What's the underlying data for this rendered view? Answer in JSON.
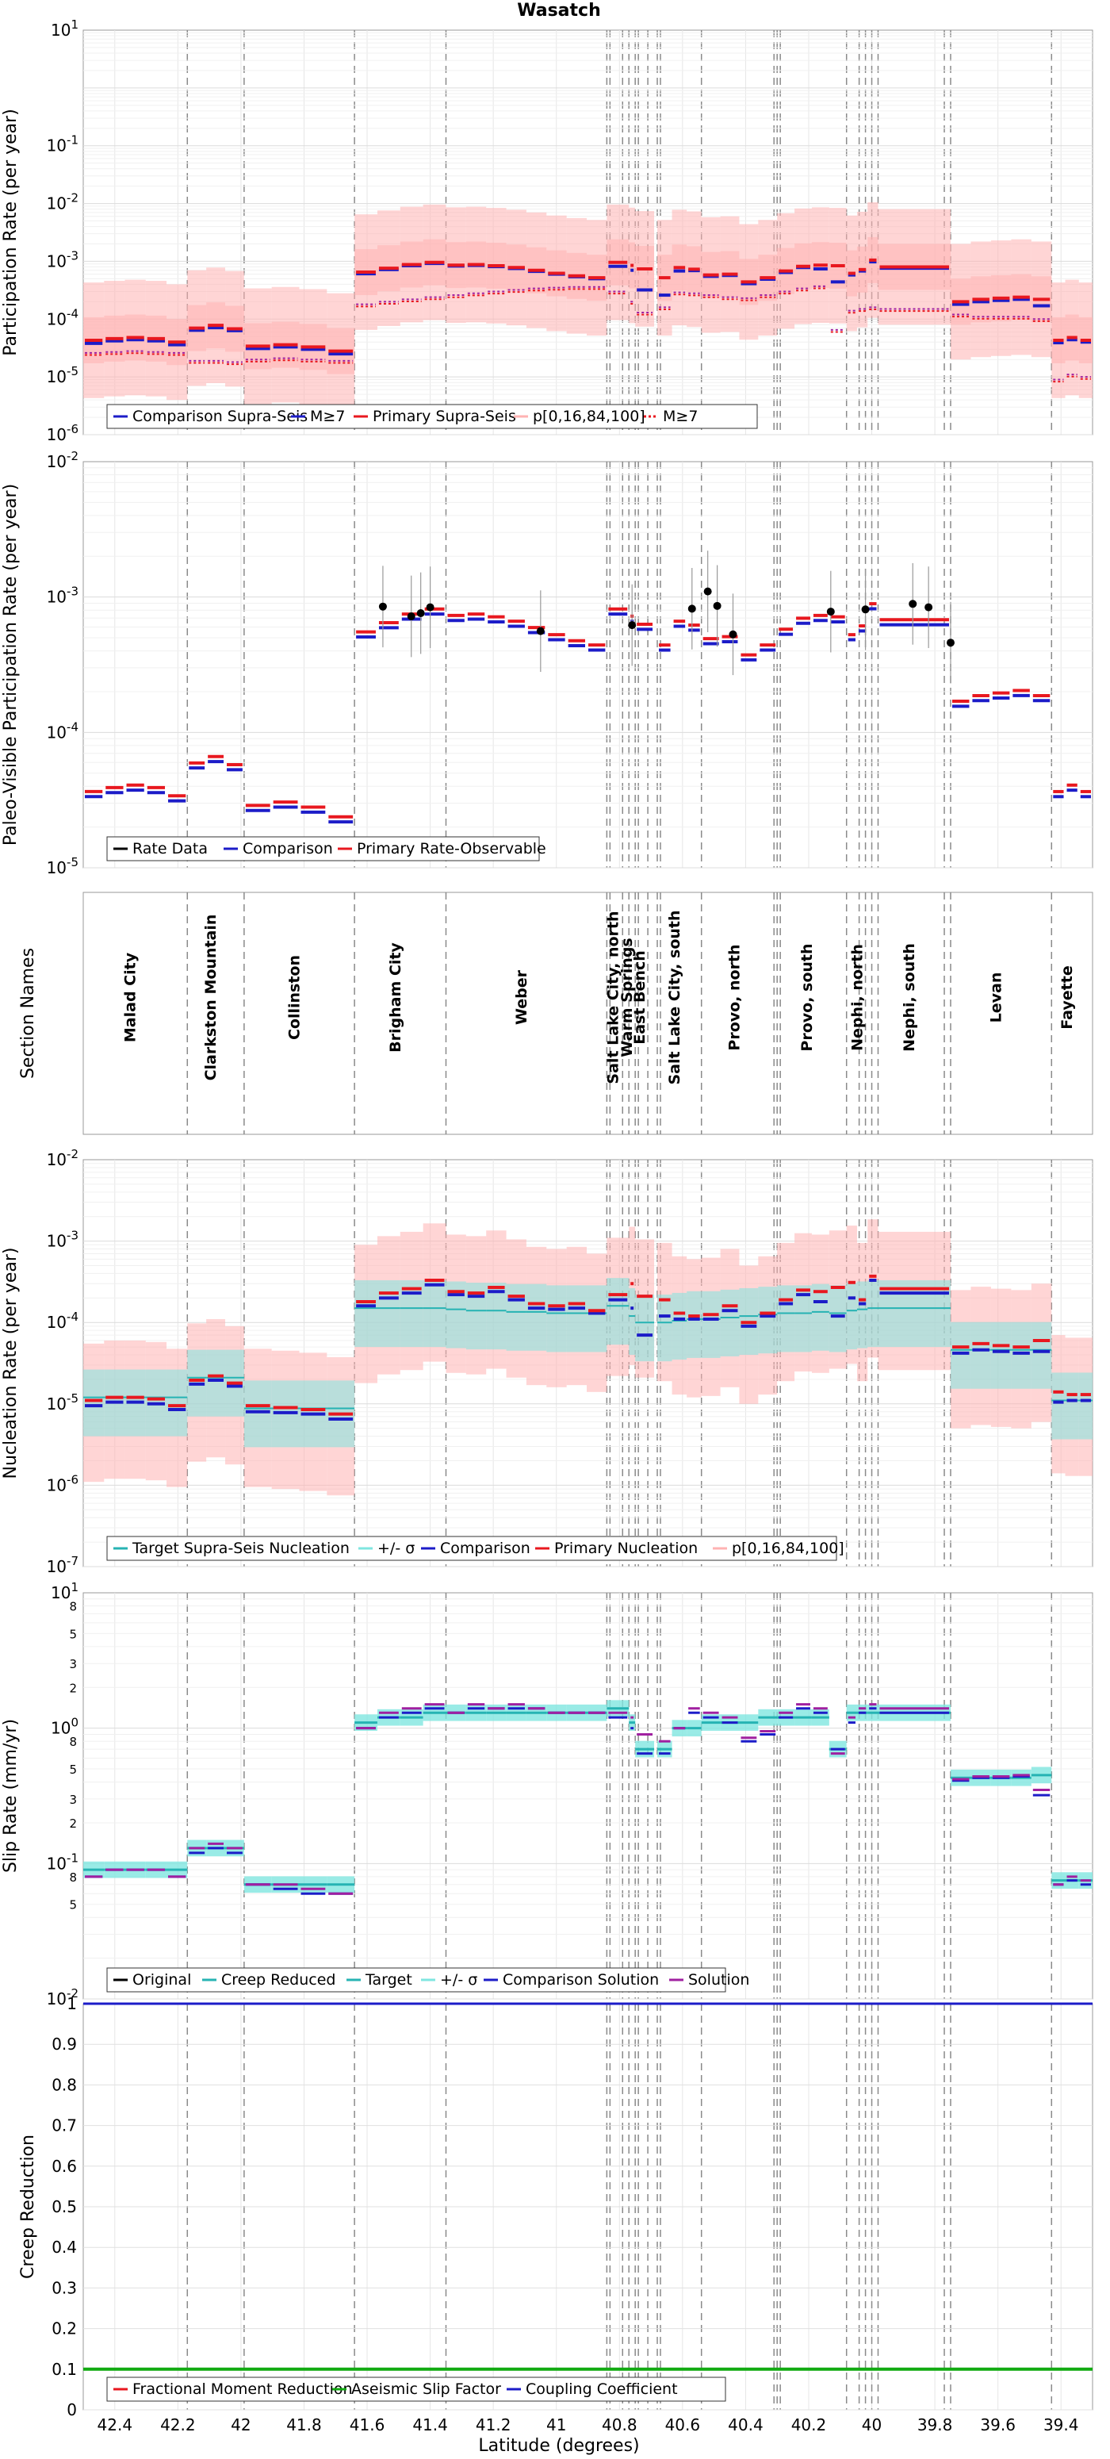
{
  "figure": {
    "title": "Wasatch",
    "xlabel": "Latitude (degrees)",
    "x_ticks": [
      "42.4",
      "42.2",
      "42",
      "41.8",
      "41.6",
      "41.4",
      "41.2",
      "41",
      "40.8",
      "40.6",
      "40.4",
      "40.2",
      "40",
      "39.8",
      "39.6",
      "39.4"
    ],
    "x_range": [
      42.5,
      39.3
    ]
  },
  "colors": {
    "primary": "#e8181f",
    "comparison": "#1c1cc8",
    "band": "#ffb3b3",
    "target": "#26b3b3",
    "sigma": "#7fe6e0",
    "solution": "#a020a0",
    "gray": "#8a8a8a",
    "green": "#11aa11"
  },
  "sections": [
    {
      "name": "Malad City",
      "start": 42.5,
      "end": 42.17
    },
    {
      "name": "Clarkston Mountain",
      "start": 42.17,
      "end": 41.99
    },
    {
      "name": "Collinston",
      "start": 41.99,
      "end": 41.64
    },
    {
      "name": "Brigham City",
      "start": 41.64,
      "end": 41.35
    },
    {
      "name": "Weber",
      "start": 41.35,
      "end": 40.84
    },
    {
      "name": "Salt Lake City, north",
      "start": 40.84,
      "end": 40.77
    },
    {
      "name": "Warm Springs",
      "start": 40.77,
      "end": 40.75
    },
    {
      "name": "East Bench",
      "start": 40.75,
      "end": 40.69
    },
    {
      "name": "Salt Lake City, south",
      "start": 40.68,
      "end": 40.54
    },
    {
      "name": "Provo, north",
      "start": 40.54,
      "end": 40.3
    },
    {
      "name": "Provo, south",
      "start": 40.3,
      "end": 40.08
    },
    {
      "name": "Nephi, north",
      "start": 40.08,
      "end": 39.98
    },
    {
      "name": "Nephi, south",
      "start": 39.98,
      "end": 39.75
    },
    {
      "name": "Levan",
      "start": 39.75,
      "end": 39.43
    },
    {
      "name": "Fayette",
      "start": 39.43,
      "end": 39.3
    }
  ],
  "chart_data": [
    {
      "type": "line",
      "title": "Wasatch",
      "ylabel": "Participation Rate (per year)",
      "yscale": "log",
      "ylim": [
        1e-06,
        10
      ],
      "y_ticks": [
        "10^-6",
        "10^-5",
        "10^-4",
        "10^-3",
        "10^-2",
        "10^-1"
      ],
      "legend": [
        "Comparison Supra-Seis",
        "M≥7",
        "Primary Supra-Seis",
        "p[0,16,84,100]",
        "M≥7"
      ],
      "series": [
        {
          "name": "Primary Supra-Seis",
          "values": [
            4.3e-05,
            4.6e-05,
            4.8e-05,
            4.6e-05,
            4e-05,
            7e-05,
            7.8e-05,
            6.8e-05,
            3.4e-05,
            3.6e-05,
            3.3e-05,
            2.8e-05,
            0.00065,
            0.00076,
            0.00088,
            0.00096,
            0.00086,
            0.00088,
            0.00084,
            0.00078,
            0.0007,
            0.00062,
            0.00056,
            0.00052,
            0.00096,
            0.00085,
            0.00074,
            0.00052,
            0.00078,
            0.00073,
            0.00058,
            0.0006,
            0.00044,
            0.00052,
            0.00068,
            0.00082,
            0.00086,
            0.00084,
            0.00062,
            0.00072,
            0.00105,
            0.0008,
            0.0002,
            0.00022,
            0.00023,
            0.00024,
            0.00022,
            4.3e-05,
            4.8e-05,
            4.3e-05
          ]
        },
        {
          "name": "Comparison Supra-Seis",
          "values": [
            3.8e-05,
            4.2e-05,
            4.4e-05,
            4.2e-05,
            3.6e-05,
            6.4e-05,
            7.1e-05,
            6.3e-05,
            3.1e-05,
            3.3e-05,
            3e-05,
            2.5e-05,
            0.00061,
            0.00072,
            0.00084,
            0.00092,
            0.00083,
            0.00085,
            0.00081,
            0.00075,
            0.00067,
            0.0006,
            0.00054,
            0.0005,
            0.00082,
            0.0007,
            0.00032,
            0.00026,
            0.00068,
            0.00069,
            0.00055,
            0.00057,
            0.00041,
            0.00049,
            0.00064,
            0.00078,
            0.00074,
            0.00044,
            0.00058,
            0.00068,
            0.00098,
            0.00076,
            0.00018,
            0.0002,
            0.00021,
            0.00022,
            0.00017,
            3.9e-05,
            4.4e-05,
            4e-05
          ]
        },
        {
          "name": "M≥7",
          "values": [
            2.6e-05,
            2.7e-05,
            2.8e-05,
            2.7e-05,
            2.6e-05,
            1.9e-05,
            1.9e-05,
            1.8e-05,
            2e-05,
            2.1e-05,
            2e-05,
            1.9e-05,
            0.00018,
            0.0002,
            0.00022,
            0.00024,
            0.00026,
            0.00028,
            0.0003,
            0.00032,
            0.00034,
            0.00035,
            0.00036,
            0.00036,
            0.0003,
            0.0002,
            0.00013,
            0.00016,
            0.00029,
            0.00028,
            0.00026,
            0.00024,
            0.00023,
            0.00026,
            0.0003,
            0.00034,
            0.00037,
            6.5e-05,
            0.00014,
            0.00015,
            0.00016,
            0.00015,
            0.00012,
            0.00011,
            0.00011,
            0.00011,
            0.0001,
            9e-06,
            1.1e-05,
            1e-05
          ]
        }
      ]
    },
    {
      "type": "line",
      "ylabel": "Paleo-Visible Participation Rate (per year)",
      "yscale": "log",
      "ylim": [
        1e-05,
        0.01
      ],
      "y_ticks": [
        "10^-5",
        "10^-4",
        "10^-3",
        "10^-2"
      ],
      "legend": [
        "Rate Data",
        "Comparison",
        "Primary Rate-Observable"
      ],
      "rate_data": [
        {
          "lat": 41.55,
          "value": 0.00085
        },
        {
          "lat": 41.46,
          "value": 0.00072
        },
        {
          "lat": 41.43,
          "value": 0.00076
        },
        {
          "lat": 41.4,
          "value": 0.00084
        },
        {
          "lat": 41.05,
          "value": 0.00056
        },
        {
          "lat": 40.76,
          "value": 0.00062
        },
        {
          "lat": 40.57,
          "value": 0.00082
        },
        {
          "lat": 40.52,
          "value": 0.0011
        },
        {
          "lat": 40.49,
          "value": 0.00086
        },
        {
          "lat": 40.44,
          "value": 0.00053
        },
        {
          "lat": 40.13,
          "value": 0.00078
        },
        {
          "lat": 40.02,
          "value": 0.00081
        },
        {
          "lat": 39.87,
          "value": 0.00089
        },
        {
          "lat": 39.82,
          "value": 0.00084
        },
        {
          "lat": 39.75,
          "value": 0.00046
        }
      ]
    },
    {
      "type": "table",
      "ylabel": "Section Names"
    },
    {
      "type": "line",
      "ylabel": "Nucleation Rate (per year)",
      "yscale": "log",
      "ylim": [
        1e-07,
        0.01
      ],
      "y_ticks": [
        "10^-7",
        "10^-6",
        "10^-5",
        "10^-4",
        "10^-3",
        "10^-2"
      ],
      "legend": [
        "Target Supra-Seis Nucleation",
        "+/- σ",
        "Comparison",
        "Primary Nucleation",
        "p[0,16,84,100]"
      ],
      "target": [
        1.2e-05,
        1.2e-05,
        1.2e-05,
        1.2e-05,
        1.2e-05,
        2.1e-05,
        2.1e-05,
        2.1e-05,
        8.8e-06,
        8.8e-06,
        8.8e-06,
        8.8e-06,
        0.00015,
        0.00015,
        0.00015,
        0.00015,
        0.000145,
        0.00014,
        0.00014,
        0.000135,
        0.000135,
        0.00013,
        0.00013,
        0.00013,
        0.00016,
        0.00012,
        0.0001,
        0.0001,
        0.000105,
        0.00011,
        0.00011,
        0.000115,
        0.00012,
        0.000125,
        0.00013,
        0.00013,
        0.000135,
        0.00013,
        0.00014,
        0.000145,
        0.00015,
        0.00015,
        4.6e-05,
        4.6e-05,
        4.6e-05,
        4.6e-05,
        4.6e-05,
        1.1e-05,
        1.1e-05,
        1.1e-05
      ],
      "primary": [
        1.1e-05,
        1.2e-05,
        1.2e-05,
        1.15e-05,
        9.5e-06,
        1.95e-05,
        2.2e-05,
        1.8e-05,
        9.5e-06,
        9e-06,
        8.5e-06,
        7.5e-06,
        0.00018,
        0.00023,
        0.00026,
        0.00033,
        0.00024,
        0.00023,
        0.00027,
        0.00021,
        0.00017,
        0.00016,
        0.00017,
        0.00014,
        0.00022,
        0.0003,
        0.00021,
        0.00019,
        0.00013,
        0.00012,
        0.000125,
        0.00016,
        0.0001,
        0.00013,
        0.00019,
        0.00025,
        0.00024,
        0.00027,
        0.00031,
        0.00019,
        0.00037,
        0.00026,
        5e-05,
        5.5e-05,
        5.2e-05,
        5e-05,
        6e-05,
        1.4e-05,
        1.3e-05,
        1.3e-05
      ],
      "comparison": [
        9.5e-06,
        1.05e-05,
        1.05e-05,
        1e-05,
        8.5e-06,
        1.75e-05,
        1.95e-05,
        1.65e-05,
        8e-06,
        7.8e-06,
        7.5e-06,
        6.5e-06,
        0.00016,
        0.0002,
        0.00023,
        0.00029,
        0.00022,
        0.00021,
        0.00024,
        0.00019,
        0.00015,
        0.000145,
        0.00015,
        0.00013,
        0.00019,
        0.00015,
        7e-05,
        0.00012,
        0.00011,
        0.00011,
        0.00011,
        0.00014,
        9e-05,
        0.00012,
        0.00017,
        0.00022,
        0.00018,
        0.00012,
        0.0002,
        0.00017,
        0.00033,
        0.00023,
        4.2e-05,
        4.6e-05,
        4.4e-05,
        4.2e-05,
        4.4e-05,
        1.05e-05,
        1.1e-05,
        1.1e-05
      ]
    },
    {
      "type": "line",
      "ylabel": "Slip Rate (mm/yr)",
      "yscale": "log",
      "ylim": [
        0.01,
        10
      ],
      "y_ticks": [
        "10^-2",
        "5",
        "8",
        "10^-1",
        "2",
        "3",
        "5",
        "8",
        "10^0",
        "2",
        "3",
        "5",
        "8",
        "10^1"
      ],
      "legend": [
        "Original",
        "Creep Reduced",
        "Target",
        "+/- σ",
        "Comparison Solution",
        "Solution"
      ],
      "target": [
        0.09,
        0.09,
        0.09,
        0.09,
        0.09,
        0.13,
        0.13,
        0.13,
        0.07,
        0.07,
        0.07,
        0.07,
        1.1,
        1.2,
        1.2,
        1.3,
        1.3,
        1.3,
        1.3,
        1.3,
        1.3,
        1.3,
        1.3,
        1.3,
        1.4,
        1.1,
        0.7,
        0.7,
        1.0,
        1.0,
        1.1,
        1.1,
        1.1,
        1.2,
        1.2,
        1.2,
        1.2,
        0.7,
        1.3,
        1.3,
        1.3,
        1.3,
        0.43,
        0.43,
        0.43,
        0.43,
        0.45,
        0.075,
        0.075,
        0.075
      ],
      "solution": [
        0.08,
        0.09,
        0.09,
        0.09,
        0.08,
        0.13,
        0.14,
        0.13,
        0.07,
        0.07,
        0.065,
        0.06,
        1.0,
        1.3,
        1.4,
        1.5,
        1.3,
        1.5,
        1.4,
        1.5,
        1.4,
        1.3,
        1.3,
        1.3,
        1.3,
        1.2,
        0.9,
        0.8,
        1.0,
        1.4,
        1.3,
        1.2,
        0.85,
        0.95,
        1.3,
        1.5,
        1.4,
        0.65,
        1.2,
        1.4,
        1.5,
        1.4,
        0.42,
        0.44,
        0.44,
        0.45,
        0.35,
        0.07,
        0.08,
        0.075
      ],
      "comparison": [
        0.08,
        0.09,
        0.09,
        0.09,
        0.08,
        0.12,
        0.13,
        0.12,
        0.07,
        0.065,
        0.06,
        0.06,
        1.0,
        1.2,
        1.3,
        1.4,
        1.3,
        1.4,
        1.4,
        1.4,
        1.4,
        1.3,
        1.3,
        1.3,
        1.2,
        1.0,
        0.65,
        0.65,
        1.0,
        1.3,
        1.2,
        1.1,
        0.8,
        0.9,
        1.2,
        1.4,
        1.3,
        0.7,
        1.1,
        1.3,
        1.4,
        1.3,
        0.41,
        0.43,
        0.43,
        0.44,
        0.32,
        0.07,
        0.075,
        0.07
      ]
    },
    {
      "type": "line",
      "ylabel": "Creep Reduction",
      "ylim": [
        0,
        1
      ],
      "y_ticks": [
        "0",
        "0.1",
        "0.2",
        "0.3",
        "0.4",
        "0.5",
        "0.6",
        "0.7",
        "0.8",
        "0.9",
        "1"
      ],
      "legend": [
        "Fractional Moment Reduction",
        "Aseismic Slip Factor",
        "Coupling Coefficient"
      ],
      "series": [
        {
          "name": "Fractional Moment Reduction",
          "value": 0.1
        },
        {
          "name": "Aseismic Slip Factor",
          "value": 0.1
        },
        {
          "name": "Coupling Coefficient",
          "value": 1.0
        }
      ]
    }
  ]
}
